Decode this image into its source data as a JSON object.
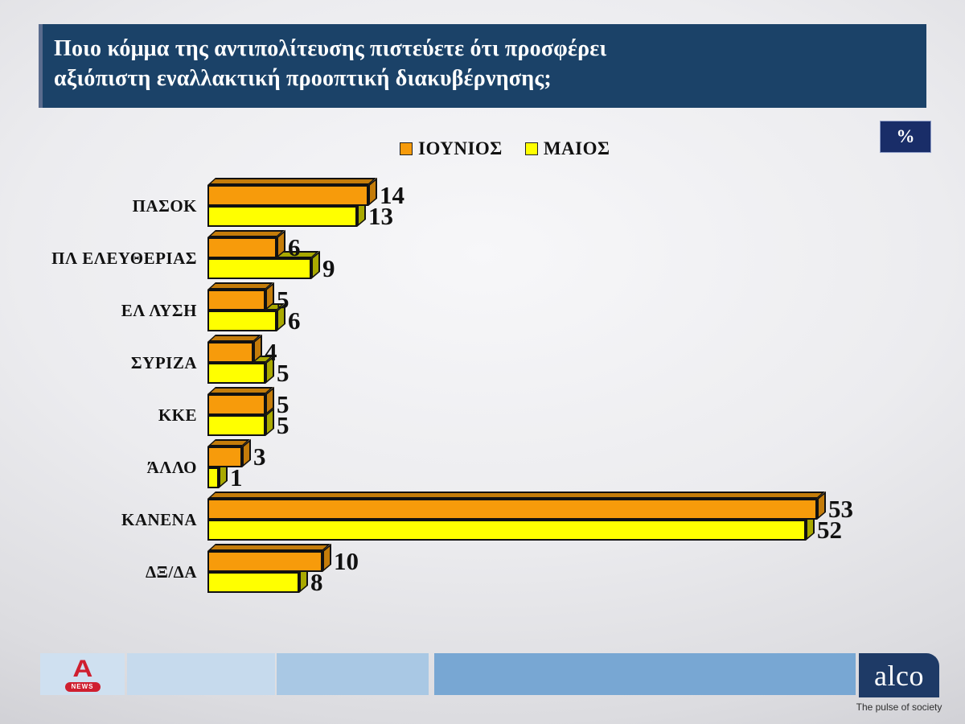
{
  "title": {
    "line1": "Ποιο κόμμα της αντιπολίτευσης πιστεύετε ότι προσφέρει",
    "line2": "αξιόπιστη εναλλακτική προοπτική διακυβέρνησης;"
  },
  "unit_badge": "%",
  "chart_data": {
    "type": "bar",
    "orientation": "horizontal",
    "title": "",
    "xlabel": "",
    "ylabel": "",
    "xlim": [
      0,
      55
    ],
    "grid": false,
    "value_labels": true,
    "legend_position": "top-center",
    "categories": [
      "ΠΑΣΟΚ",
      "ΠΛ ΕΛΕΥΘΕΡΙΑΣ",
      "ΕΛ ΛΥΣΗ",
      "ΣΥΡΙΖΑ",
      "ΚΚΕ",
      "ΆΛΛΟ",
      "ΚΑΝΕΝΑ",
      "ΔΞ/ΔΑ"
    ],
    "series": [
      {
        "name": "ΙΟΥΝΙΟΣ",
        "color": "#F79B0B",
        "color_dark": "#C47C0A",
        "values": [
          14,
          6,
          5,
          4,
          5,
          3,
          53,
          10
        ]
      },
      {
        "name": "ΜΑΙΟΣ",
        "color": "#FFFF00",
        "color_dark": "#A9A900",
        "values": [
          13,
          9,
          6,
          5,
          5,
          1,
          52,
          8
        ]
      }
    ]
  },
  "footer": {
    "alpha_news": {
      "channel": "A",
      "label": "NEWS"
    },
    "alco": {
      "name": "alco",
      "tagline": "The pulse of society"
    }
  },
  "colors": {
    "title_bar": "#1b4268",
    "badge": "#192d68",
    "footer_blocks": [
      "#cfe0f0",
      "#c6daed",
      "#a9c8e4",
      "#78a7d3"
    ],
    "alco_box": "#1e3a66",
    "alpha_red": "#cf1f2f"
  }
}
